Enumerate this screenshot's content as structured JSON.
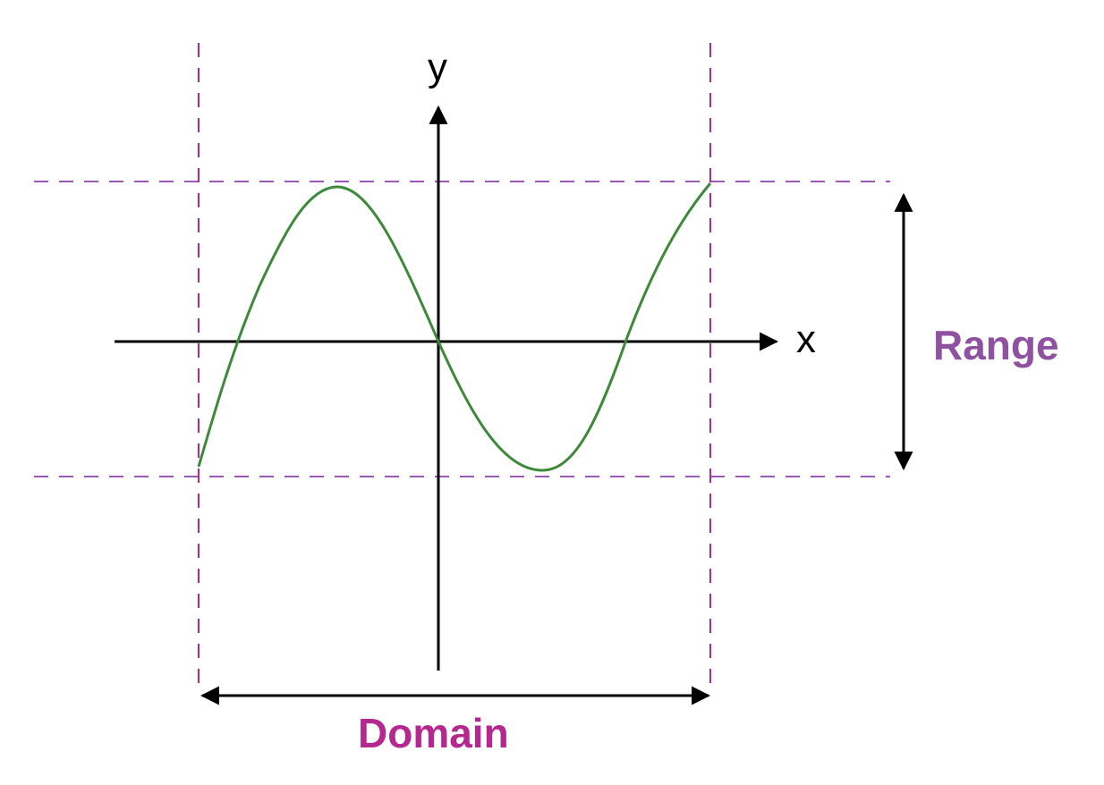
{
  "labels": {
    "y_axis": "y",
    "x_axis": "x",
    "range": "Range",
    "domain": "Domain"
  },
  "colors": {
    "curve": "#3d8a3a",
    "axes": "#000000",
    "domain_guides": "#b5288f",
    "range_guides": "#9b59b6",
    "domain_label": "#b5288f",
    "range_label": "#8e52a1"
  }
}
